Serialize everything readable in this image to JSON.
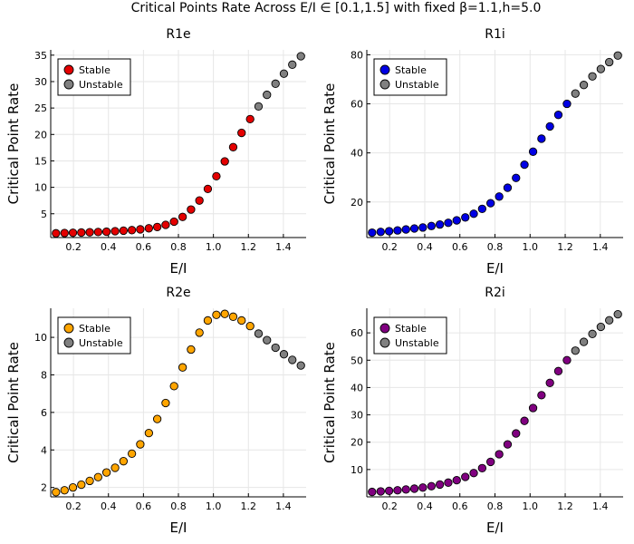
{
  "suptitle": "Critical Points Rate Across E/I ∈ [0.1,1.5] with fixed β=1.1,h=5.0",
  "colors": {
    "unstable": "#808080",
    "grid": "#e6e6e6"
  },
  "chart_data": [
    {
      "type": "scatter",
      "title": "R1e",
      "xlabel": "E/I",
      "ylabel": "Critical Point Rate",
      "xlim": [
        0.07,
        1.53
      ],
      "ylim": [
        0.5,
        36
      ],
      "xticks": [
        0.2,
        0.4,
        0.6,
        0.8,
        1.0,
        1.2,
        1.4
      ],
      "xtick_labels": [
        "0.2",
        "0.4",
        "0.6",
        "0.8",
        "1.0",
        "1.2",
        "1.4"
      ],
      "yticks": [
        5,
        10,
        15,
        20,
        25,
        30,
        35
      ],
      "ytick_labels": [
        "5",
        "10",
        "15",
        "20",
        "25",
        "30",
        "35"
      ],
      "legend": "top-left",
      "grid": true,
      "series": [
        {
          "name": "Stable",
          "color": "#e40000",
          "x": [
            0.1,
            0.149,
            0.197,
            0.245,
            0.293,
            0.341,
            0.389,
            0.438,
            0.486,
            0.534,
            0.582,
            0.631,
            0.679,
            0.727,
            0.775,
            0.824,
            0.872,
            0.92,
            0.968,
            1.017,
            1.065,
            1.113,
            1.161,
            1.21
          ],
          "y": [
            1.3,
            1.35,
            1.4,
            1.45,
            1.5,
            1.55,
            1.6,
            1.7,
            1.8,
            1.9,
            2.05,
            2.25,
            2.5,
            2.9,
            3.5,
            4.4,
            5.8,
            7.5,
            9.7,
            12.1,
            14.9,
            17.6,
            20.3,
            22.9
          ]
        },
        {
          "name": "Unstable",
          "color": "#808080",
          "x": [
            1.258,
            1.306,
            1.355,
            1.403,
            1.451,
            1.5
          ],
          "y": [
            25.3,
            27.5,
            29.6,
            31.5,
            33.2,
            34.8
          ]
        }
      ]
    },
    {
      "type": "scatter",
      "title": "R1i",
      "xlabel": "E/I",
      "ylabel": "Critical Point Rate",
      "xlim": [
        0.07,
        1.53
      ],
      "ylim": [
        5.5,
        82
      ],
      "xticks": [
        0.2,
        0.4,
        0.6,
        0.8,
        1.0,
        1.2,
        1.4
      ],
      "xtick_labels": [
        "0.2",
        "0.4",
        "0.6",
        "0.8",
        "1.0",
        "1.2",
        "1.4"
      ],
      "yticks": [
        20,
        40,
        60,
        80
      ],
      "ytick_labels": [
        "20",
        "40",
        "60",
        "80"
      ],
      "legend": "top-left",
      "grid": true,
      "series": [
        {
          "name": "Stable",
          "color": "#0000e4",
          "x": [
            0.1,
            0.149,
            0.197,
            0.245,
            0.293,
            0.341,
            0.389,
            0.438,
            0.486,
            0.534,
            0.582,
            0.631,
            0.679,
            0.727,
            0.775,
            0.824,
            0.872,
            0.92,
            0.968,
            1.017,
            1.065,
            1.113,
            1.161,
            1.21
          ],
          "y": [
            7.5,
            7.8,
            8.1,
            8.4,
            8.8,
            9.2,
            9.6,
            10.2,
            10.8,
            11.5,
            12.5,
            13.7,
            15.2,
            17.2,
            19.5,
            22.2,
            25.8,
            29.8,
            35.2,
            40.5,
            45.8,
            50.8,
            55.5,
            60.0
          ]
        },
        {
          "name": "Unstable",
          "color": "#808080",
          "x": [
            1.258,
            1.306,
            1.355,
            1.403,
            1.451,
            1.5
          ],
          "y": [
            64.2,
            67.7,
            71.2,
            74.2,
            77.0,
            79.7
          ]
        }
      ]
    },
    {
      "type": "scatter",
      "title": "R2e",
      "xlabel": "E/I",
      "ylabel": "Critical Point Rate",
      "xlim": [
        0.07,
        1.53
      ],
      "ylim": [
        1.5,
        11.55
      ],
      "xticks": [
        0.2,
        0.4,
        0.6,
        0.8,
        1.0,
        1.2,
        1.4
      ],
      "xtick_labels": [
        "0.2",
        "0.4",
        "0.6",
        "0.8",
        "1.0",
        "1.2",
        "1.4"
      ],
      "yticks": [
        2,
        4,
        6,
        8,
        10
      ],
      "ytick_labels": [
        "2",
        "4",
        "6",
        "8",
        "10"
      ],
      "legend": "top-left",
      "grid": true,
      "series": [
        {
          "name": "Stable",
          "color": "#ffa500",
          "x": [
            0.1,
            0.149,
            0.197,
            0.245,
            0.293,
            0.341,
            0.389,
            0.438,
            0.486,
            0.534,
            0.582,
            0.631,
            0.679,
            0.727,
            0.775,
            0.824,
            0.872,
            0.92,
            0.968,
            1.017,
            1.065,
            1.113,
            1.161,
            1.21
          ],
          "y": [
            1.75,
            1.85,
            2.0,
            2.15,
            2.35,
            2.55,
            2.8,
            3.05,
            3.4,
            3.8,
            4.3,
            4.9,
            5.65,
            6.5,
            7.4,
            8.4,
            9.35,
            10.25,
            10.9,
            11.2,
            11.25,
            11.1,
            10.9,
            10.6
          ]
        },
        {
          "name": "Unstable",
          "color": "#808080",
          "x": [
            1.258,
            1.306,
            1.355,
            1.403,
            1.451,
            1.5
          ],
          "y": [
            10.2,
            9.85,
            9.45,
            9.1,
            8.8,
            8.5
          ]
        }
      ]
    },
    {
      "type": "scatter",
      "title": "R2i",
      "xlabel": "E/I",
      "ylabel": "Critical Point Rate",
      "xlim": [
        0.07,
        1.53
      ],
      "ylim": [
        0,
        69
      ],
      "xticks": [
        0.2,
        0.4,
        0.6,
        0.8,
        1.0,
        1.2,
        1.4
      ],
      "xtick_labels": [
        "0.2",
        "0.4",
        "0.6",
        "0.8",
        "1.0",
        "1.2",
        "1.4"
      ],
      "yticks": [
        10,
        20,
        30,
        40,
        50,
        60
      ],
      "ytick_labels": [
        "10",
        "20",
        "30",
        "40",
        "50",
        "60"
      ],
      "legend": "top-left",
      "grid": true,
      "series": [
        {
          "name": "Stable",
          "color": "#800080",
          "x": [
            0.1,
            0.149,
            0.197,
            0.245,
            0.293,
            0.341,
            0.389,
            0.438,
            0.486,
            0.534,
            0.582,
            0.631,
            0.679,
            0.727,
            0.775,
            0.824,
            0.872,
            0.92,
            0.968,
            1.017,
            1.065,
            1.113,
            1.161,
            1.21
          ],
          "y": [
            1.8,
            2.0,
            2.2,
            2.4,
            2.7,
            3.0,
            3.4,
            3.9,
            4.5,
            5.2,
            6.1,
            7.3,
            8.7,
            10.5,
            12.8,
            15.6,
            19.2,
            23.2,
            27.8,
            32.5,
            37.2,
            41.7,
            46.0,
            50.0
          ]
        },
        {
          "name": "Unstable",
          "color": "#808080",
          "x": [
            1.258,
            1.306,
            1.355,
            1.403,
            1.451,
            1.5
          ],
          "y": [
            53.5,
            56.7,
            59.6,
            62.2,
            64.6,
            66.8
          ]
        }
      ]
    }
  ]
}
